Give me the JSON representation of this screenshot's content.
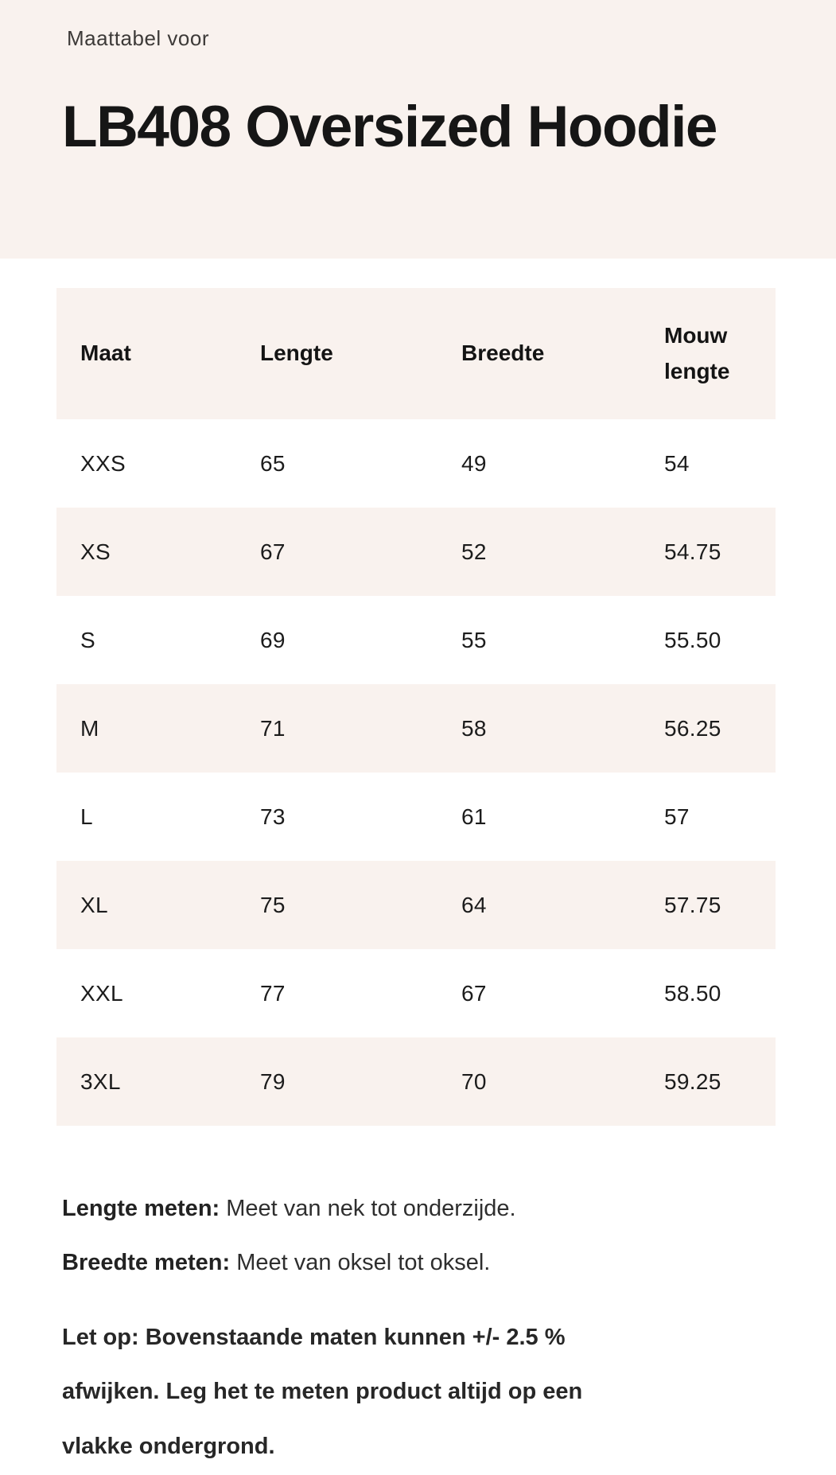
{
  "header": {
    "eyebrow": "Maattabel voor",
    "title": "LB408 Oversized Hoodie"
  },
  "table": {
    "columns": [
      "Maat",
      "Lengte",
      "Breedte",
      "Mouw lengte"
    ],
    "rows": [
      {
        "maat": "XXS",
        "lengte": "65",
        "breedte": "49",
        "mouw": "54"
      },
      {
        "maat": "XS",
        "lengte": "67",
        "breedte": "52",
        "mouw": "54.75"
      },
      {
        "maat": "S",
        "lengte": "69",
        "breedte": "55",
        "mouw": "55.50"
      },
      {
        "maat": "M",
        "lengte": "71",
        "breedte": "58",
        "mouw": "56.25"
      },
      {
        "maat": "L",
        "lengte": "73",
        "breedte": "61",
        "mouw": "57"
      },
      {
        "maat": "XL",
        "lengte": "75",
        "breedte": "64",
        "mouw": "57.75"
      },
      {
        "maat": "XXL",
        "lengte": "77",
        "breedte": "67",
        "mouw": "58.50"
      },
      {
        "maat": "3XL",
        "lengte": "79",
        "breedte": "70",
        "mouw": "59.25"
      }
    ]
  },
  "notes": {
    "length_label": "Lengte meten:",
    "length_text": "Meet van nek tot onderzijde.",
    "width_label": "Breedte meten:",
    "width_text": "Meet van oksel tot oksel.",
    "warning_lines": [
      "Let op: Bovenstaande maten kunnen +/- 2.5 %",
      "afwijken. Leg het te meten product altijd op een",
      "vlakke ondergrond."
    ]
  },
  "colors": {
    "band": "#f9f2ee",
    "row_alt": "#f9f2ee",
    "title_text": "#161616",
    "body_text": "#1c1c1c"
  }
}
